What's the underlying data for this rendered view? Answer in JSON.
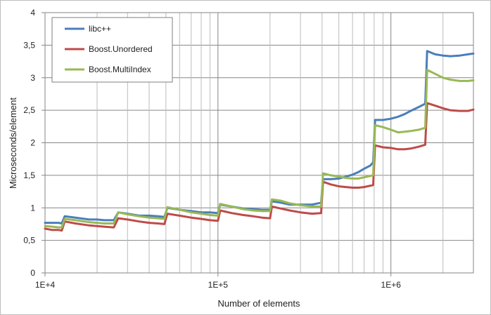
{
  "chart_data": {
    "type": "line",
    "xlabel": "Number of elements",
    "ylabel": "Microseconds/element",
    "xscale": "log",
    "xlim": [
      10000,
      3000000
    ],
    "ylim": [
      0,
      4
    ],
    "x_ticks": [
      {
        "value": 10000,
        "label": "1E+4"
      },
      {
        "value": 100000,
        "label": "1E+5"
      },
      {
        "value": 1000000,
        "label": "1E+6"
      }
    ],
    "y_ticks": [
      {
        "value": 0,
        "label": "0"
      },
      {
        "value": 0.5,
        "label": "0,5"
      },
      {
        "value": 1,
        "label": "1"
      },
      {
        "value": 1.5,
        "label": "1,5"
      },
      {
        "value": 2,
        "label": "2"
      },
      {
        "value": 2.5,
        "label": "2,5"
      },
      {
        "value": 3,
        "label": "3"
      },
      {
        "value": 3.5,
        "label": "3,5"
      },
      {
        "value": 4,
        "label": "4"
      }
    ],
    "grid": "on",
    "legend_position": "top-left",
    "series": [
      {
        "name": "libc++",
        "color": "#4a7ebb",
        "points": [
          [
            10000,
            0.77
          ],
          [
            11000,
            0.77
          ],
          [
            12000,
            0.77
          ],
          [
            12500,
            0.76
          ],
          [
            13000,
            0.87
          ],
          [
            15000,
            0.85
          ],
          [
            18000,
            0.82
          ],
          [
            20000,
            0.82
          ],
          [
            22000,
            0.81
          ],
          [
            25000,
            0.81
          ],
          [
            26500,
            0.93
          ],
          [
            30000,
            0.91
          ],
          [
            35000,
            0.88
          ],
          [
            40000,
            0.88
          ],
          [
            45000,
            0.87
          ],
          [
            49000,
            0.86
          ],
          [
            51000,
            1.0
          ],
          [
            60000,
            0.97
          ],
          [
            70000,
            0.95
          ],
          [
            80000,
            0.93
          ],
          [
            90000,
            0.93
          ],
          [
            100000,
            0.92
          ],
          [
            103000,
            1.05
          ],
          [
            120000,
            1.02
          ],
          [
            140000,
            0.99
          ],
          [
            160000,
            0.98
          ],
          [
            180000,
            0.97
          ],
          [
            200000,
            0.97
          ],
          [
            205000,
            1.1
          ],
          [
            230000,
            1.08
          ],
          [
            260000,
            1.05
          ],
          [
            300000,
            1.05
          ],
          [
            350000,
            1.05
          ],
          [
            380000,
            1.07
          ],
          [
            395000,
            1.08
          ],
          [
            405000,
            1.44
          ],
          [
            450000,
            1.44
          ],
          [
            500000,
            1.45
          ],
          [
            550000,
            1.48
          ],
          [
            600000,
            1.51
          ],
          [
            650000,
            1.55
          ],
          [
            700000,
            1.6
          ],
          [
            760000,
            1.65
          ],
          [
            790000,
            1.7
          ],
          [
            810000,
            2.35
          ],
          [
            900000,
            2.35
          ],
          [
            1000000,
            2.37
          ],
          [
            1100000,
            2.4
          ],
          [
            1200000,
            2.44
          ],
          [
            1300000,
            2.49
          ],
          [
            1450000,
            2.55
          ],
          [
            1580000,
            2.6
          ],
          [
            1620000,
            3.41
          ],
          [
            1800000,
            3.36
          ],
          [
            2000000,
            3.34
          ],
          [
            2200000,
            3.33
          ],
          [
            2500000,
            3.34
          ],
          [
            2800000,
            3.36
          ],
          [
            3000000,
            3.37
          ]
        ]
      },
      {
        "name": "Boost.Unordered",
        "color": "#be4b48",
        "points": [
          [
            10000,
            0.68
          ],
          [
            11000,
            0.66
          ],
          [
            12000,
            0.66
          ],
          [
            12500,
            0.65
          ],
          [
            13000,
            0.79
          ],
          [
            15000,
            0.76
          ],
          [
            18000,
            0.73
          ],
          [
            20000,
            0.72
          ],
          [
            22000,
            0.71
          ],
          [
            25000,
            0.7
          ],
          [
            26500,
            0.84
          ],
          [
            30000,
            0.82
          ],
          [
            35000,
            0.79
          ],
          [
            40000,
            0.77
          ],
          [
            45000,
            0.76
          ],
          [
            49000,
            0.75
          ],
          [
            51000,
            0.91
          ],
          [
            60000,
            0.88
          ],
          [
            70000,
            0.85
          ],
          [
            80000,
            0.83
          ],
          [
            90000,
            0.81
          ],
          [
            100000,
            0.8
          ],
          [
            103000,
            0.96
          ],
          [
            120000,
            0.92
          ],
          [
            140000,
            0.89
          ],
          [
            160000,
            0.87
          ],
          [
            180000,
            0.85
          ],
          [
            200000,
            0.84
          ],
          [
            205000,
            1.02
          ],
          [
            230000,
            0.99
          ],
          [
            260000,
            0.96
          ],
          [
            300000,
            0.93
          ],
          [
            350000,
            0.91
          ],
          [
            395000,
            0.92
          ],
          [
            405000,
            1.4
          ],
          [
            450000,
            1.36
          ],
          [
            500000,
            1.33
          ],
          [
            550000,
            1.32
          ],
          [
            600000,
            1.31
          ],
          [
            650000,
            1.31
          ],
          [
            700000,
            1.32
          ],
          [
            790000,
            1.35
          ],
          [
            810000,
            1.96
          ],
          [
            900000,
            1.93
          ],
          [
            1000000,
            1.92
          ],
          [
            1100000,
            1.9
          ],
          [
            1200000,
            1.9
          ],
          [
            1300000,
            1.91
          ],
          [
            1450000,
            1.94
          ],
          [
            1580000,
            1.97
          ],
          [
            1620000,
            2.61
          ],
          [
            1800000,
            2.57
          ],
          [
            2000000,
            2.53
          ],
          [
            2200000,
            2.5
          ],
          [
            2500000,
            2.49
          ],
          [
            2800000,
            2.49
          ],
          [
            3000000,
            2.51
          ]
        ]
      },
      {
        "name": "Boost.MultiIndex",
        "color": "#98b954",
        "points": [
          [
            10000,
            0.72
          ],
          [
            11000,
            0.71
          ],
          [
            12000,
            0.7
          ],
          [
            12500,
            0.7
          ],
          [
            13000,
            0.83
          ],
          [
            15000,
            0.81
          ],
          [
            18000,
            0.78
          ],
          [
            20000,
            0.77
          ],
          [
            22000,
            0.76
          ],
          [
            25000,
            0.76
          ],
          [
            26500,
            0.93
          ],
          [
            30000,
            0.9
          ],
          [
            35000,
            0.87
          ],
          [
            40000,
            0.85
          ],
          [
            45000,
            0.84
          ],
          [
            49000,
            0.83
          ],
          [
            51000,
            1.01
          ],
          [
            60000,
            0.97
          ],
          [
            70000,
            0.93
          ],
          [
            80000,
            0.91
          ],
          [
            90000,
            0.89
          ],
          [
            100000,
            0.88
          ],
          [
            103000,
            1.06
          ],
          [
            120000,
            1.02
          ],
          [
            140000,
            0.98
          ],
          [
            160000,
            0.96
          ],
          [
            180000,
            0.95
          ],
          [
            200000,
            0.95
          ],
          [
            205000,
            1.13
          ],
          [
            230000,
            1.11
          ],
          [
            260000,
            1.07
          ],
          [
            300000,
            1.04
          ],
          [
            350000,
            1.02
          ],
          [
            395000,
            1.02
          ],
          [
            405000,
            1.53
          ],
          [
            450000,
            1.5
          ],
          [
            500000,
            1.48
          ],
          [
            550000,
            1.46
          ],
          [
            600000,
            1.45
          ],
          [
            650000,
            1.45
          ],
          [
            700000,
            1.47
          ],
          [
            790000,
            1.5
          ],
          [
            810000,
            2.27
          ],
          [
            900000,
            2.24
          ],
          [
            1000000,
            2.2
          ],
          [
            1100000,
            2.16
          ],
          [
            1200000,
            2.17
          ],
          [
            1300000,
            2.18
          ],
          [
            1450000,
            2.2
          ],
          [
            1580000,
            2.23
          ],
          [
            1620000,
            3.12
          ],
          [
            1800000,
            3.06
          ],
          [
            2000000,
            3.0
          ],
          [
            2200000,
            2.97
          ],
          [
            2500000,
            2.95
          ],
          [
            2800000,
            2.95
          ],
          [
            3000000,
            2.96
          ]
        ]
      }
    ]
  }
}
